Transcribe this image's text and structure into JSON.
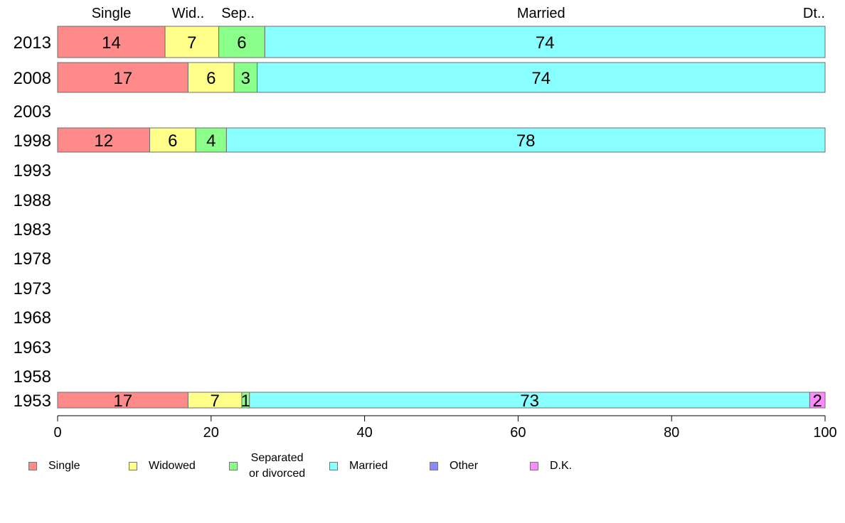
{
  "chart_data": {
    "type": "bar",
    "orientation": "horizontal",
    "stacked": true,
    "categories": [
      "2013",
      "2008",
      "2003",
      "1998",
      "1993",
      "1988",
      "1983",
      "1978",
      "1973",
      "1968",
      "1963",
      "1958",
      "1953"
    ],
    "series": [
      {
        "name": "Single",
        "color": "#ff8a8a",
        "values": [
          14,
          17,
          null,
          12,
          null,
          null,
          null,
          null,
          null,
          null,
          null,
          null,
          17
        ],
        "labels": [
          "14",
          "17",
          "",
          "12",
          "",
          "",
          "",
          "",
          "",
          "",
          "",
          "",
          "17"
        ]
      },
      {
        "name": "Widowed",
        "color": "#ffff8a",
        "values": [
          7,
          6,
          null,
          6,
          null,
          null,
          null,
          null,
          null,
          null,
          null,
          null,
          7
        ],
        "labels": [
          "7",
          "6",
          "",
          "6",
          "",
          "",
          "",
          "",
          "",
          "",
          "",
          "",
          "7"
        ]
      },
      {
        "name": "Separated\nor divorced",
        "color": "#8aff8a",
        "values": [
          6,
          3,
          null,
          4,
          null,
          null,
          null,
          null,
          null,
          null,
          null,
          null,
          1
        ],
        "labels": [
          "6",
          "3",
          "",
          "4",
          "",
          "",
          "",
          "",
          "",
          "",
          "",
          "",
          "1"
        ]
      },
      {
        "name": "Married",
        "color": "#8affff",
        "values": [
          74,
          74,
          null,
          78,
          null,
          null,
          null,
          null,
          null,
          null,
          null,
          null,
          73
        ],
        "labels": [
          "74",
          "74",
          "",
          "78",
          "",
          "",
          "",
          "",
          "",
          "",
          "",
          "",
          "73"
        ]
      },
      {
        "name": "Other",
        "color": "#8a8aff",
        "values": [
          0,
          0,
          null,
          0,
          null,
          null,
          null,
          null,
          null,
          null,
          null,
          null,
          0
        ],
        "labels": [
          "",
          "",
          "",
          "",
          "",
          "",
          "",
          "",
          "",
          "",
          "",
          "",
          ""
        ]
      },
      {
        "name": "D.K.",
        "color": "#ff8aff",
        "values": [
          0,
          0,
          null,
          0,
          null,
          null,
          null,
          null,
          null,
          null,
          null,
          null,
          2
        ],
        "labels": [
          "",
          "",
          "",
          "",
          "",
          "",
          "",
          "",
          "",
          "",
          "",
          "",
          "2"
        ]
      }
    ],
    "top_labels": [
      {
        "text": "Single",
        "x": 7
      },
      {
        "text": "Wid..",
        "x": 17
      },
      {
        "text": "Sep..",
        "x": 23.5
      },
      {
        "text": "Married",
        "x": 63
      },
      {
        "text": "Dt..",
        "x": 100
      }
    ],
    "xlim": [
      0,
      100
    ],
    "xticks": [
      0,
      20,
      40,
      60,
      80,
      100
    ],
    "xlabel": "",
    "ylabel": "",
    "title": "",
    "grid": false,
    "legend_position": "bottom"
  }
}
